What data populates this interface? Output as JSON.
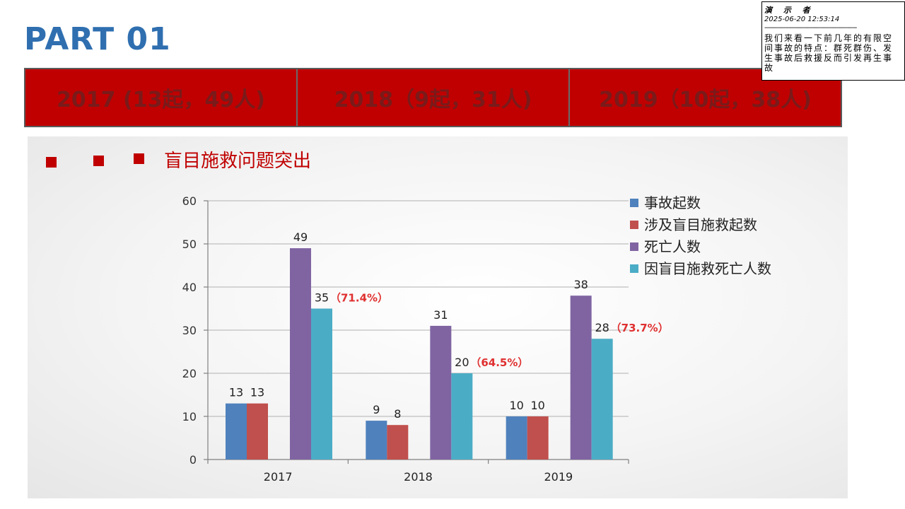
{
  "header": {
    "part_title": "PART 01"
  },
  "year_bar": [
    {
      "label": "2017 (13起，49人)"
    },
    {
      "label": "2018（9起，31人)"
    },
    {
      "label": "2019（10起，38人)"
    }
  ],
  "section": {
    "title": "盲目施救问题突出"
  },
  "note": {
    "author": "演 示 者",
    "timestamp": "2025-06-20 12:53:14",
    "separator": "--------------------------------------------------",
    "body": "我们来看一下前几年的有限空间事故的特点：群死群伤、发生事故后救援反而引发再生事故"
  },
  "colors": {
    "accent_red": "#c00000",
    "title_blue": "#2f6fb0"
  },
  "chart_data": {
    "type": "bar",
    "categories": [
      "2017",
      "2018",
      "2019"
    ],
    "series": [
      {
        "name": "事故起数",
        "color": "#4f81bd",
        "values": [
          13,
          9,
          10
        ]
      },
      {
        "name": "涉及盲目施救起数",
        "color": "#c0504d",
        "values": [
          13,
          8,
          10
        ]
      },
      {
        "name": "死亡人数",
        "color": "#8064a2",
        "values": [
          49,
          31,
          38
        ]
      },
      {
        "name": "因盲目施救死亡人数",
        "color": "#4bacc6",
        "values": [
          35,
          20,
          28
        ]
      }
    ],
    "annotations": [
      "（71.4%）",
      "（64.5%）",
      "（73.7%）"
    ],
    "ylim": [
      0,
      60
    ],
    "yticks": [
      0,
      10,
      20,
      30,
      40,
      50,
      60
    ],
    "grid": true,
    "legend": "right"
  }
}
